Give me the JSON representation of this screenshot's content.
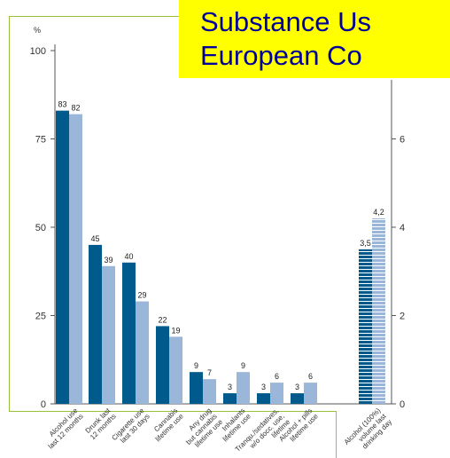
{
  "title_lines": [
    "Substance Us",
    "European Co"
  ],
  "chart_data": {
    "type": "bar",
    "left_axis": {
      "unit": "%",
      "ticks": [
        0,
        25,
        50,
        75,
        100
      ],
      "ylim": [
        0,
        100
      ]
    },
    "right_axis": {
      "ticks": [
        0,
        2,
        4,
        6
      ],
      "ylim": [
        0,
        8
      ]
    },
    "categories": [
      [
        "Alcohol use",
        "last 12 months"
      ],
      [
        "Drunk last",
        "12 months"
      ],
      [
        "Cigarette use",
        "last 30 days"
      ],
      [
        "Cannabis",
        "lifetime use"
      ],
      [
        "Any drug",
        "but cannabis",
        "lifetime use"
      ],
      [
        "Inhalants",
        "lifetime use"
      ],
      [
        "Tranqu./sedatives,",
        "w/o docc. use,",
        "lifetime"
      ],
      [
        "Alcohol + pills",
        "lifetime use"
      ],
      [
        "Alcohol (100%)",
        "volume last",
        "drinking day"
      ]
    ],
    "series": [
      {
        "values": [
          83,
          45,
          40,
          22,
          9,
          3,
          3,
          3,
          3.5
        ],
        "labels": [
          "83",
          "45",
          "40",
          "22",
          "9",
          "3",
          "3",
          "3",
          "3,5"
        ]
      },
      {
        "values": [
          82,
          39,
          29,
          19,
          7,
          9,
          6,
          6,
          4.2
        ],
        "labels": [
          "82",
          "39",
          "29",
          "19",
          "7",
          "9",
          "6",
          "6",
          "4,2"
        ]
      }
    ],
    "colors": {
      "series1": "#005a8c",
      "series2": "#9ab6d8",
      "axis": "#555555",
      "frame": "#98c23a",
      "title_bg": "#ffff00",
      "title_text": "#00009a"
    },
    "legend": "none",
    "grid": false
  }
}
